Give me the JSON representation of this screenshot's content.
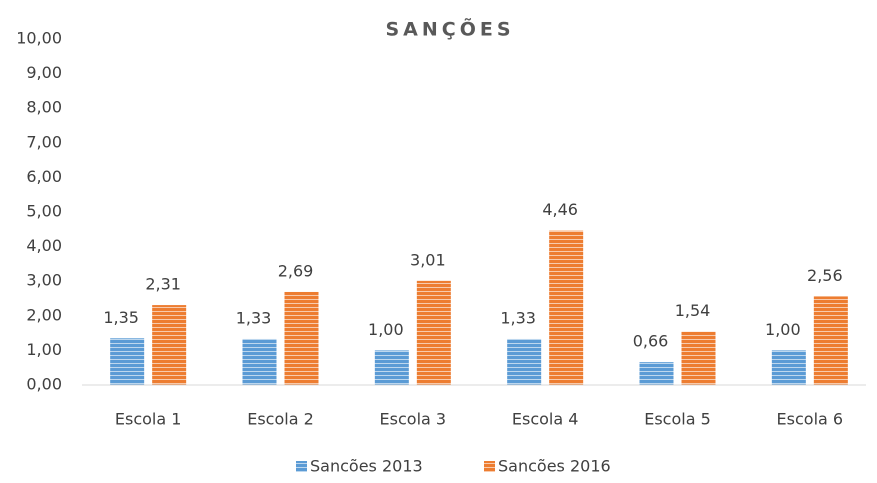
{
  "chart_data": {
    "type": "bar",
    "title": "SANÇÕES",
    "categories": [
      "Escola 1",
      "Escola 2",
      "Escola 3",
      "Escola 4",
      "Escola 5",
      "Escola 6"
    ],
    "series": [
      {
        "name": "Sancões 2013",
        "color": "#5b9bd5",
        "values": [
          1.35,
          1.33,
          1.0,
          1.33,
          0.66,
          1.0
        ],
        "value_labels": [
          "1,35",
          "1,33",
          "1,00",
          "1,33",
          "0,66",
          "1,00"
        ]
      },
      {
        "name": "Sancões 2016",
        "color": "#ed7d31",
        "values": [
          2.31,
          2.69,
          3.01,
          4.46,
          1.54,
          2.56
        ],
        "value_labels": [
          "2,31",
          "2,69",
          "3,01",
          "4,46",
          "1,54",
          "2,56"
        ]
      }
    ],
    "ylim": [
      0,
      10
    ],
    "yticks": [
      {
        "value": 0,
        "label": "0,00"
      },
      {
        "value": 1,
        "label": "1,00"
      },
      {
        "value": 2,
        "label": "2,00"
      },
      {
        "value": 3,
        "label": "3,00"
      },
      {
        "value": 4,
        "label": "4,00"
      },
      {
        "value": 5,
        "label": "5,00"
      },
      {
        "value": 6,
        "label": "6,00"
      },
      {
        "value": 7,
        "label": "7,00"
      },
      {
        "value": 8,
        "label": "8,00"
      },
      {
        "value": 9,
        "label": "9,00"
      },
      {
        "value": 10,
        "label": "10,00"
      }
    ],
    "grid": false,
    "legend": "bottom"
  }
}
